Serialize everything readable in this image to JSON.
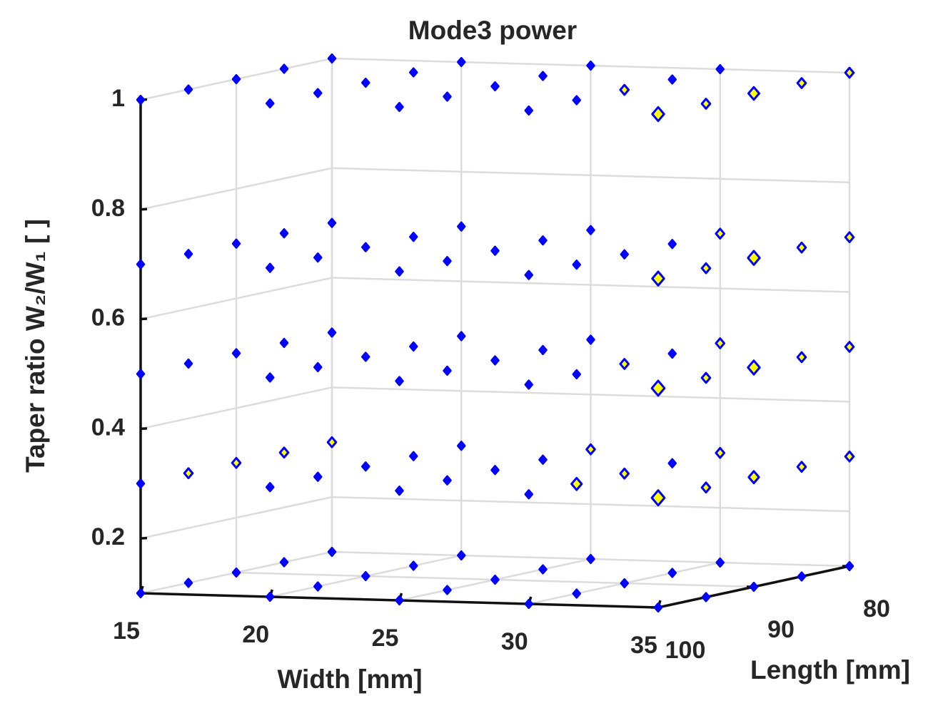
{
  "chart_data": {
    "type": "scatter3d",
    "title": "Mode3 power",
    "xlabel": "Width [mm]",
    "ylabel": "Length [mm]",
    "zlabel": "Taper ratio W₂/W₁ [ ]",
    "xlim": [
      15,
      35
    ],
    "xticks": [
      15,
      20,
      25,
      30,
      35
    ],
    "ylim": [
      80,
      100
    ],
    "yticks": [
      80,
      90,
      100
    ],
    "y_reversed": true,
    "zlim": [
      0.1,
      1
    ],
    "zticks": [
      0.2,
      0.4,
      0.6,
      0.8,
      1
    ],
    "grid": true,
    "edge_color": "#0000ff",
    "x": [
      15,
      20,
      25,
      30,
      35,
      15,
      20,
      25,
      30,
      35,
      15,
      20,
      25,
      30,
      35,
      15,
      20,
      25,
      30,
      35,
      15,
      20,
      25,
      30,
      35,
      15,
      20,
      25,
      30,
      35,
      15,
      20,
      25,
      30,
      35,
      15,
      20,
      25,
      30,
      35,
      15,
      20,
      25,
      30,
      35,
      15,
      20,
      25,
      30,
      35,
      15,
      20,
      25,
      30,
      35,
      15,
      20,
      25,
      30,
      35,
      15,
      20,
      25,
      30,
      35,
      15,
      20,
      25,
      30,
      35,
      15,
      20,
      25,
      30,
      35,
      15,
      20,
      25,
      30,
      35,
      15,
      20,
      25,
      30,
      35,
      15,
      20,
      25,
      30,
      35,
      15,
      20,
      25,
      30,
      35,
      15,
      20,
      25,
      30,
      35,
      15,
      20,
      25,
      30,
      35,
      15,
      20,
      25,
      30,
      35,
      15,
      20,
      25,
      30,
      35,
      15,
      20,
      25,
      30,
      35,
      15,
      20,
      25,
      30,
      35
    ],
    "y": [
      100,
      100,
      100,
      100,
      100,
      95,
      95,
      95,
      95,
      95,
      90,
      90,
      90,
      90,
      90,
      85,
      85,
      85,
      85,
      85,
      80,
      80,
      80,
      80,
      80,
      100,
      100,
      100,
      100,
      100,
      95,
      95,
      95,
      95,
      95,
      90,
      90,
      90,
      90,
      90,
      85,
      85,
      85,
      85,
      85,
      80,
      80,
      80,
      80,
      80,
      100,
      100,
      100,
      100,
      100,
      95,
      95,
      95,
      95,
      95,
      90,
      90,
      90,
      90,
      90,
      85,
      85,
      85,
      85,
      85,
      80,
      80,
      80,
      80,
      80,
      100,
      100,
      100,
      100,
      100,
      95,
      95,
      95,
      95,
      95,
      90,
      90,
      90,
      90,
      90,
      85,
      85,
      85,
      85,
      85,
      80,
      80,
      80,
      80,
      80,
      100,
      100,
      100,
      100,
      100,
      95,
      95,
      95,
      95,
      95,
      90,
      90,
      90,
      90,
      90,
      85,
      85,
      85,
      85,
      85,
      80,
      80,
      80,
      80,
      80
    ],
    "z": [
      0.1,
      0.1,
      0.1,
      0.1,
      0.1,
      0.1,
      0.1,
      0.1,
      0.1,
      0.1,
      0.1,
      0.1,
      0.1,
      0.1,
      0.1,
      0.1,
      0.1,
      0.1,
      0.1,
      0.1,
      0.1,
      0.1,
      0.1,
      0.1,
      0.1,
      0.3,
      0.3,
      0.3,
      0.3,
      0.3,
      0.3,
      0.3,
      0.3,
      0.3,
      0.3,
      0.3,
      0.3,
      0.3,
      0.3,
      0.3,
      0.3,
      0.3,
      0.3,
      0.3,
      0.3,
      0.3,
      0.3,
      0.3,
      0.3,
      0.3,
      0.5,
      0.5,
      0.5,
      0.5,
      0.5,
      0.5,
      0.5,
      0.5,
      0.5,
      0.5,
      0.5,
      0.5,
      0.5,
      0.5,
      0.5,
      0.5,
      0.5,
      0.5,
      0.5,
      0.5,
      0.5,
      0.5,
      0.5,
      0.5,
      0.5,
      0.7,
      0.7,
      0.7,
      0.7,
      0.7,
      0.7,
      0.7,
      0.7,
      0.7,
      0.7,
      0.7,
      0.7,
      0.7,
      0.7,
      0.7,
      0.7,
      0.7,
      0.7,
      0.7,
      0.7,
      0.7,
      0.7,
      0.7,
      0.7,
      0.7,
      1,
      1,
      1,
      1,
      1,
      1,
      1,
      1,
      1,
      1,
      1,
      1,
      1,
      1,
      1,
      1,
      1,
      1,
      1,
      1,
      1,
      1,
      1,
      1,
      1
    ],
    "sizes": [
      20,
      20,
      20,
      20,
      20,
      20,
      20,
      20,
      20,
      20,
      20,
      20,
      20,
      20,
      20,
      20,
      20,
      20,
      20,
      20,
      20,
      20,
      20,
      20,
      20,
      20,
      20,
      20,
      20,
      70,
      30,
      20,
      20,
      45,
      30,
      30,
      20,
      20,
      30,
      45,
      30,
      20,
      20,
      20,
      30,
      30,
      20,
      30,
      30,
      30,
      20,
      20,
      20,
      20,
      70,
      20,
      20,
      20,
      20,
      30,
      20,
      20,
      20,
      30,
      60,
      20,
      20,
      20,
      20,
      30,
      20,
      20,
      20,
      30,
      30,
      20,
      20,
      20,
      20,
      60,
      20,
      20,
      20,
      20,
      30,
      20,
      20,
      20,
      20,
      60,
      20,
      20,
      20,
      20,
      30,
      20,
      20,
      20,
      30,
      30,
      20,
      20,
      20,
      20,
      60,
      20,
      20,
      20,
      20,
      30,
      20,
      20,
      20,
      30,
      50,
      20,
      20,
      20,
      20,
      30,
      20,
      20,
      20,
      20,
      30
    ],
    "colors": [
      "#00f",
      "#00f",
      "#00f",
      "#00f",
      "#00f",
      "#00f",
      "#00f",
      "#00f",
      "#00f",
      "#00f",
      "#00f",
      "#00f",
      "#00f",
      "#00f",
      "#00f",
      "#00f",
      "#00f",
      "#00f",
      "#00f",
      "#00f",
      "#00f",
      "#00f",
      "#00f",
      "#00f",
      "#00f",
      "#00f",
      "#00f",
      "#00f",
      "#00f",
      "#ff0",
      "#ff0",
      "#00f",
      "#00f",
      "#ff0",
      "#ff0",
      "#ff0",
      "#00f",
      "#00f",
      "#ff0",
      "#ff0",
      "#ff0",
      "#00f",
      "#00f",
      "#00f",
      "#ff0",
      "#ff0",
      "#00f",
      "#ff0",
      "#ff0",
      "#ff0",
      "#00f",
      "#00f",
      "#00f",
      "#00f",
      "#ff0",
      "#00f",
      "#00f",
      "#00f",
      "#00f",
      "#ff0",
      "#00f",
      "#00f",
      "#00f",
      "#ff0",
      "#ff0",
      "#00f",
      "#00f",
      "#00f",
      "#00f",
      "#ff0",
      "#00f",
      "#00f",
      "#00f",
      "#ff0",
      "#ff0",
      "#00f",
      "#00f",
      "#00f",
      "#00f",
      "#ff0",
      "#00f",
      "#00f",
      "#00f",
      "#00f",
      "#ff0",
      "#00f",
      "#00f",
      "#00f",
      "#00f",
      "#ff0",
      "#00f",
      "#00f",
      "#00f",
      "#00f",
      "#ff0",
      "#00f",
      "#00f",
      "#00f",
      "#ff0",
      "#ff0",
      "#00f",
      "#00f",
      "#00f",
      "#00f",
      "#ff0",
      "#00f",
      "#00f",
      "#00f",
      "#00f",
      "#ff0",
      "#00f",
      "#00f",
      "#00f",
      "#ff0",
      "#ff0",
      "#00f",
      "#00f",
      "#00f",
      "#00f",
      "#ff0",
      "#00f",
      "#00f",
      "#00f",
      "#00f",
      "#ff0"
    ]
  }
}
